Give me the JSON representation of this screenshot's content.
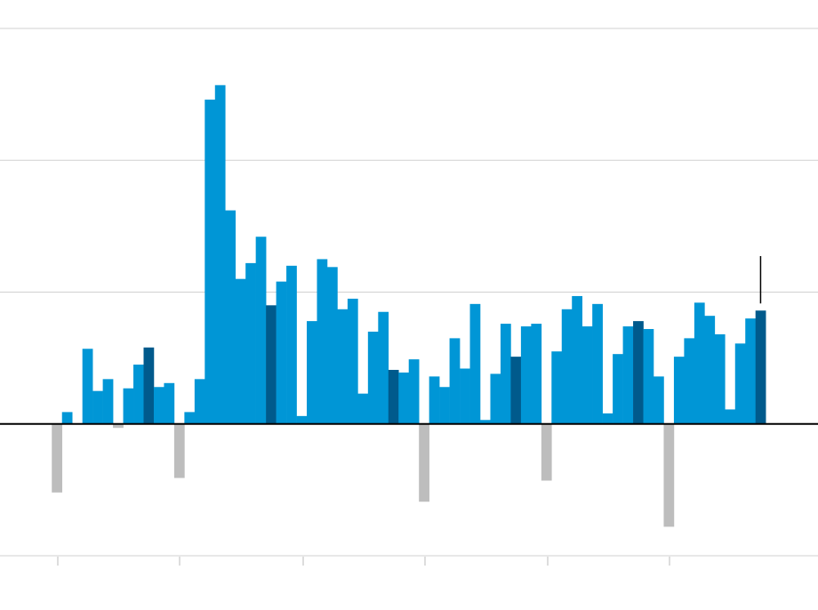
{
  "chart_data": {
    "type": "bar",
    "categories": [
      null,
      null,
      null,
      null,
      null,
      null,
      null,
      null,
      null,
      null,
      null,
      null,
      null,
      null,
      null,
      null,
      null,
      null,
      null,
      null,
      null,
      null,
      null,
      null,
      null,
      null,
      null,
      null,
      null,
      null,
      null,
      null,
      null,
      null,
      null,
      null,
      null,
      null,
      null,
      null,
      null,
      null,
      null,
      null,
      null,
      null,
      null,
      null,
      null,
      null,
      null,
      null,
      null,
      null,
      null,
      null,
      null,
      null,
      null,
      null,
      null,
      null,
      null,
      null,
      null,
      null,
      null,
      null,
      null,
      null
    ],
    "values": [
      -0.52,
      0.09,
      0,
      0.57,
      0.25,
      0.34,
      -0.03,
      0.27,
      0.45,
      0.58,
      0.28,
      0.31,
      -0.41,
      0.09,
      0.34,
      2.46,
      2.57,
      1.62,
      1.1,
      1.22,
      1.42,
      0.9,
      1.08,
      1.2,
      0.06,
      0.78,
      1.25,
      1.19,
      0.87,
      0.95,
      0.23,
      0.7,
      0.85,
      0.41,
      0.39,
      0.49,
      -0.59,
      0.36,
      0.28,
      0.65,
      0.42,
      0.91,
      0.03,
      0.38,
      0.76,
      0.51,
      0.74,
      0.76,
      -0.43,
      0.55,
      0.87,
      0.97,
      0.74,
      0.91,
      0.08,
      0.53,
      0.74,
      0.78,
      0.72,
      0.36,
      -0.78,
      0.51,
      0.65,
      0.92,
      0.82,
      0.68,
      0.11,
      0.61,
      0.8,
      0.86
    ],
    "colors": [
      "#bdbdbd",
      "#0096d6",
      "#0096d6",
      "#0096d6",
      "#0096d6",
      "#0096d6",
      "#bdbdbd",
      "#0096d6",
      "#0096d6",
      "#005a8c",
      "#0096d6",
      "#0096d6",
      "#bdbdbd",
      "#0096d6",
      "#0096d6",
      "#0096d6",
      "#0096d6",
      "#0096d6",
      "#0096d6",
      "#0096d6",
      "#0096d6",
      "#005a8c",
      "#0096d6",
      "#0096d6",
      "#0096d6",
      "#0096d6",
      "#0096d6",
      "#0096d6",
      "#0096d6",
      "#0096d6",
      "#0096d6",
      "#0096d6",
      "#0096d6",
      "#005a8c",
      "#0096d6",
      "#0096d6",
      "#bdbdbd",
      "#0096d6",
      "#0096d6",
      "#0096d6",
      "#0096d6",
      "#0096d6",
      "#0096d6",
      "#0096d6",
      "#0096d6",
      "#005a8c",
      "#0096d6",
      "#0096d6",
      "#bdbdbd",
      "#0096d6",
      "#0096d6",
      "#0096d6",
      "#0096d6",
      "#0096d6",
      "#0096d6",
      "#0096d6",
      "#0096d6",
      "#005a8c",
      "#0096d6",
      "#0096d6",
      "#bdbdbd",
      "#0096d6",
      "#0096d6",
      "#0096d6",
      "#0096d6",
      "#0096d6",
      "#0096d6",
      "#0096d6",
      "#0096d6",
      "#005a8c"
    ],
    "ylim": [
      -1,
      3
    ],
    "yticks": [
      -1,
      0,
      1,
      2,
      3
    ],
    "grid": true
  }
}
